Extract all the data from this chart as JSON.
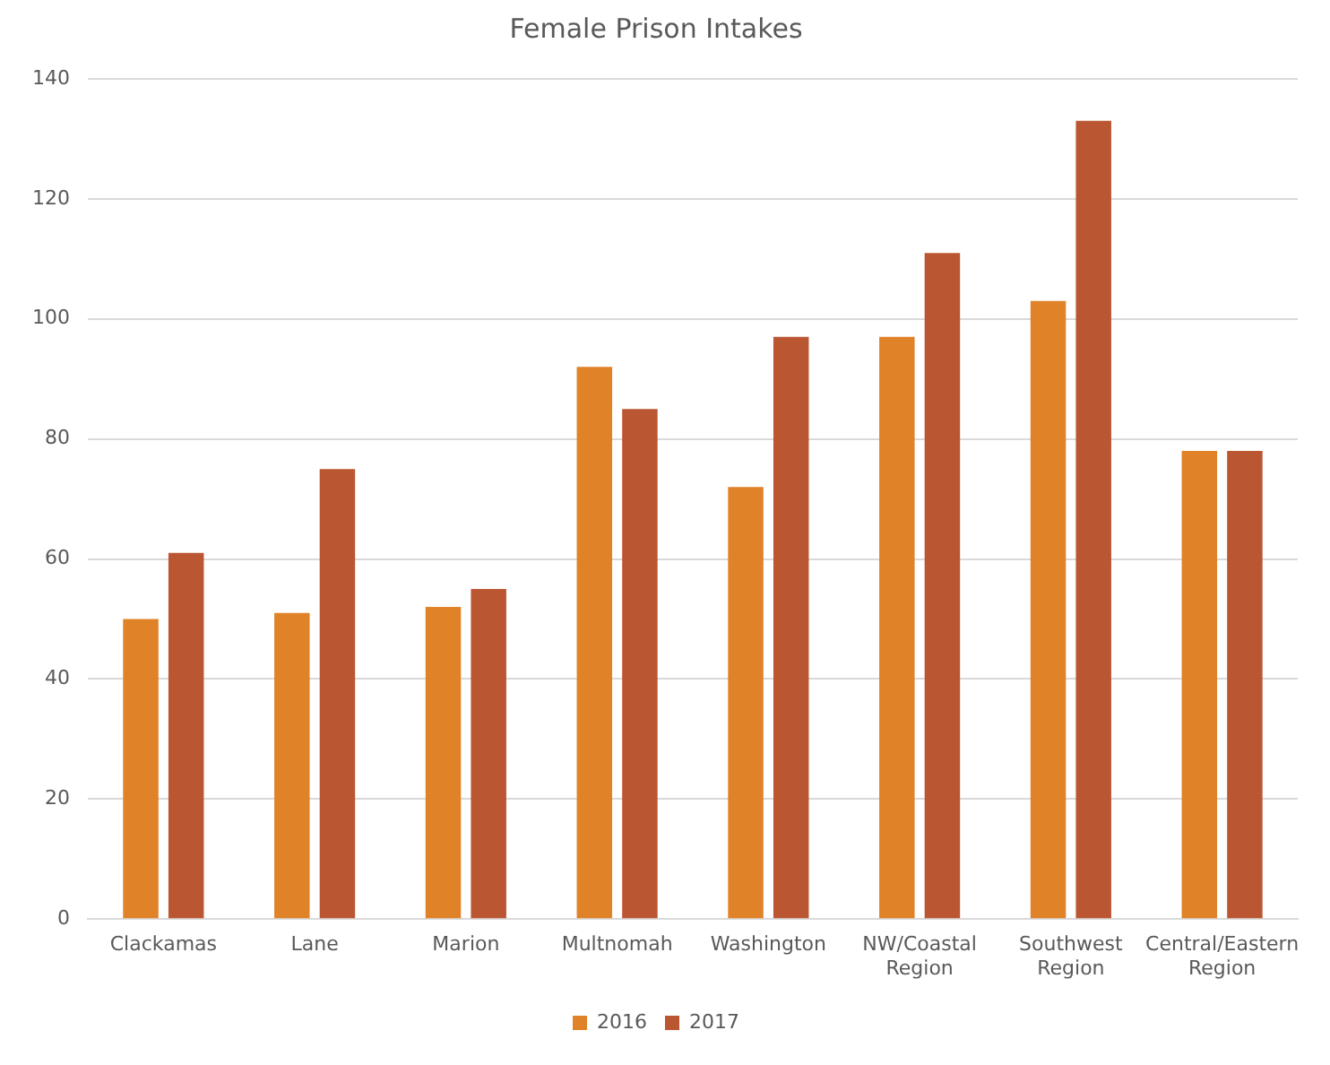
{
  "chart_data": {
    "type": "bar",
    "title": "Female Prison Intakes",
    "categories": [
      "Clackamas",
      "Lane",
      "Marion",
      "Multnomah",
      "Washington",
      "NW/Coastal Region",
      "Southwest Region",
      "Central/Eastern Region"
    ],
    "series": [
      {
        "name": "2016",
        "color": "#e08228",
        "values": [
          50,
          51,
          52,
          92,
          72,
          97,
          103,
          78
        ]
      },
      {
        "name": "2017",
        "color": "#bb5632",
        "values": [
          61,
          75,
          55,
          85,
          97,
          111,
          133,
          78
        ]
      }
    ],
    "ylim": [
      0,
      140
    ],
    "yticks": [
      0,
      20,
      40,
      60,
      80,
      100,
      120,
      140
    ],
    "grid": "y",
    "legend": "bottom"
  }
}
